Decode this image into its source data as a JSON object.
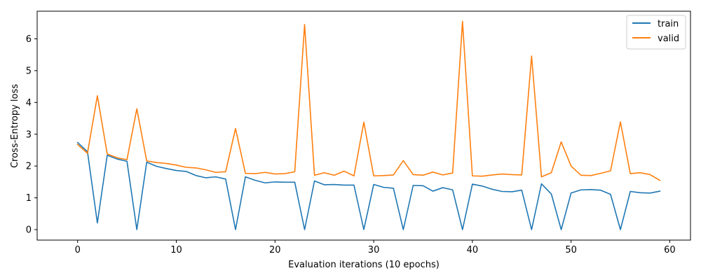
{
  "chart_data": {
    "type": "line",
    "title": "",
    "xlabel": "Evaluation iterations (10 epochs)",
    "ylabel": "Cross-Entropy loss",
    "xlim": [
      -4.1,
      62.1
    ],
    "ylim": [
      -0.33,
      6.87
    ],
    "xticks": [
      0,
      10,
      20,
      30,
      40,
      50,
      60
    ],
    "yticks": [
      0,
      1,
      2,
      3,
      4,
      5,
      6
    ],
    "grid": false,
    "legend_position": "top-right",
    "series": [
      {
        "name": "train",
        "color": "#1f77b4",
        "x": [
          0,
          1,
          2,
          3,
          4,
          5,
          6,
          7,
          8,
          9,
          10,
          11,
          12,
          13,
          14,
          15,
          16,
          17,
          18,
          19,
          20,
          21,
          22,
          23,
          24,
          25,
          26,
          27,
          28,
          29,
          30,
          31,
          32,
          33,
          34,
          35,
          36,
          37,
          38,
          39,
          40,
          41,
          42,
          43,
          44,
          45,
          46,
          47,
          48,
          49,
          50,
          51,
          52,
          53,
          54,
          55,
          56,
          57,
          58,
          59
        ],
        "values": [
          2.74,
          2.45,
          0.21,
          2.34,
          2.22,
          2.15,
          0.0,
          2.12,
          1.99,
          1.92,
          1.86,
          1.83,
          1.7,
          1.63,
          1.66,
          1.59,
          0.0,
          1.66,
          1.55,
          1.47,
          1.5,
          1.49,
          1.49,
          0.0,
          1.53,
          1.41,
          1.42,
          1.4,
          1.4,
          0.0,
          1.42,
          1.33,
          1.3,
          0.0,
          1.39,
          1.38,
          1.21,
          1.32,
          1.25,
          0.0,
          1.43,
          1.37,
          1.27,
          1.2,
          1.19,
          1.24,
          0.0,
          1.44,
          1.12,
          0.0,
          1.15,
          1.25,
          1.26,
          1.24,
          1.11,
          0.0,
          1.2,
          1.16,
          1.15,
          1.21
        ]
      },
      {
        "name": "valid",
        "color": "#ff7f0e",
        "x": [
          0,
          1,
          2,
          3,
          4,
          5,
          6,
          7,
          8,
          9,
          10,
          11,
          12,
          13,
          14,
          15,
          16,
          17,
          18,
          19,
          20,
          21,
          22,
          23,
          24,
          25,
          26,
          27,
          28,
          29,
          30,
          31,
          32,
          33,
          34,
          35,
          36,
          37,
          38,
          39,
          40,
          41,
          42,
          43,
          44,
          45,
          46,
          47,
          48,
          49,
          50,
          51,
          52,
          53,
          54,
          55,
          56,
          57,
          58,
          59
        ],
        "values": [
          2.68,
          2.4,
          4.21,
          2.38,
          2.26,
          2.2,
          3.8,
          2.16,
          2.11,
          2.08,
          2.03,
          1.96,
          1.94,
          1.88,
          1.8,
          1.82,
          3.18,
          1.77,
          1.76,
          1.8,
          1.75,
          1.76,
          1.82,
          6.45,
          1.71,
          1.79,
          1.71,
          1.84,
          1.69,
          3.38,
          1.69,
          1.7,
          1.72,
          2.17,
          1.73,
          1.71,
          1.81,
          1.72,
          1.78,
          6.55,
          1.69,
          1.68,
          1.72,
          1.75,
          1.73,
          1.72,
          5.46,
          1.66,
          1.79,
          2.76,
          2.0,
          1.71,
          1.7,
          1.77,
          1.85,
          3.39,
          1.76,
          1.79,
          1.73,
          1.55
        ]
      }
    ]
  }
}
